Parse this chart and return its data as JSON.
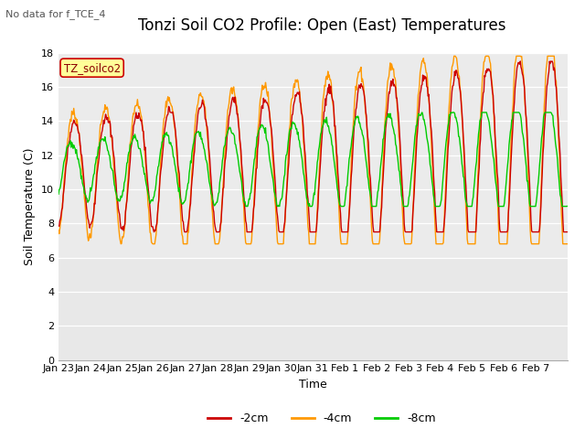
{
  "title": "Tonzi Soil CO2 Profile: Open (East) Temperatures",
  "subtitle": "No data for f_TCE_4",
  "legend_label": "TZ_soilco2",
  "ylabel": "Soil Temperature (C)",
  "xlabel": "Time",
  "ylim": [
    0,
    18
  ],
  "yticks": [
    0,
    2,
    4,
    6,
    8,
    10,
    12,
    14,
    16,
    18
  ],
  "xtick_labels": [
    "Jan 23",
    "Jan 24",
    "Jan 25",
    "Jan 26",
    "Jan 27",
    "Jan 28",
    "Jan 29",
    "Jan 30",
    "Jan 31",
    "Feb 1",
    "Feb 2",
    "Feb 3",
    "Feb 4",
    "Feb 5",
    "Feb 6",
    "Feb 7"
  ],
  "color_2cm": "#cc0000",
  "color_4cm": "#ff9900",
  "color_8cm": "#00cc00",
  "bg_plot": "#e8e8e8",
  "bg_fig": "#ffffff",
  "legend_box_color": "#ffff99",
  "legend_box_edge": "#cc0000",
  "title_fontsize": 12,
  "axis_fontsize": 9,
  "tick_fontsize": 8,
  "n_days": 16,
  "samples_per_day": 48
}
